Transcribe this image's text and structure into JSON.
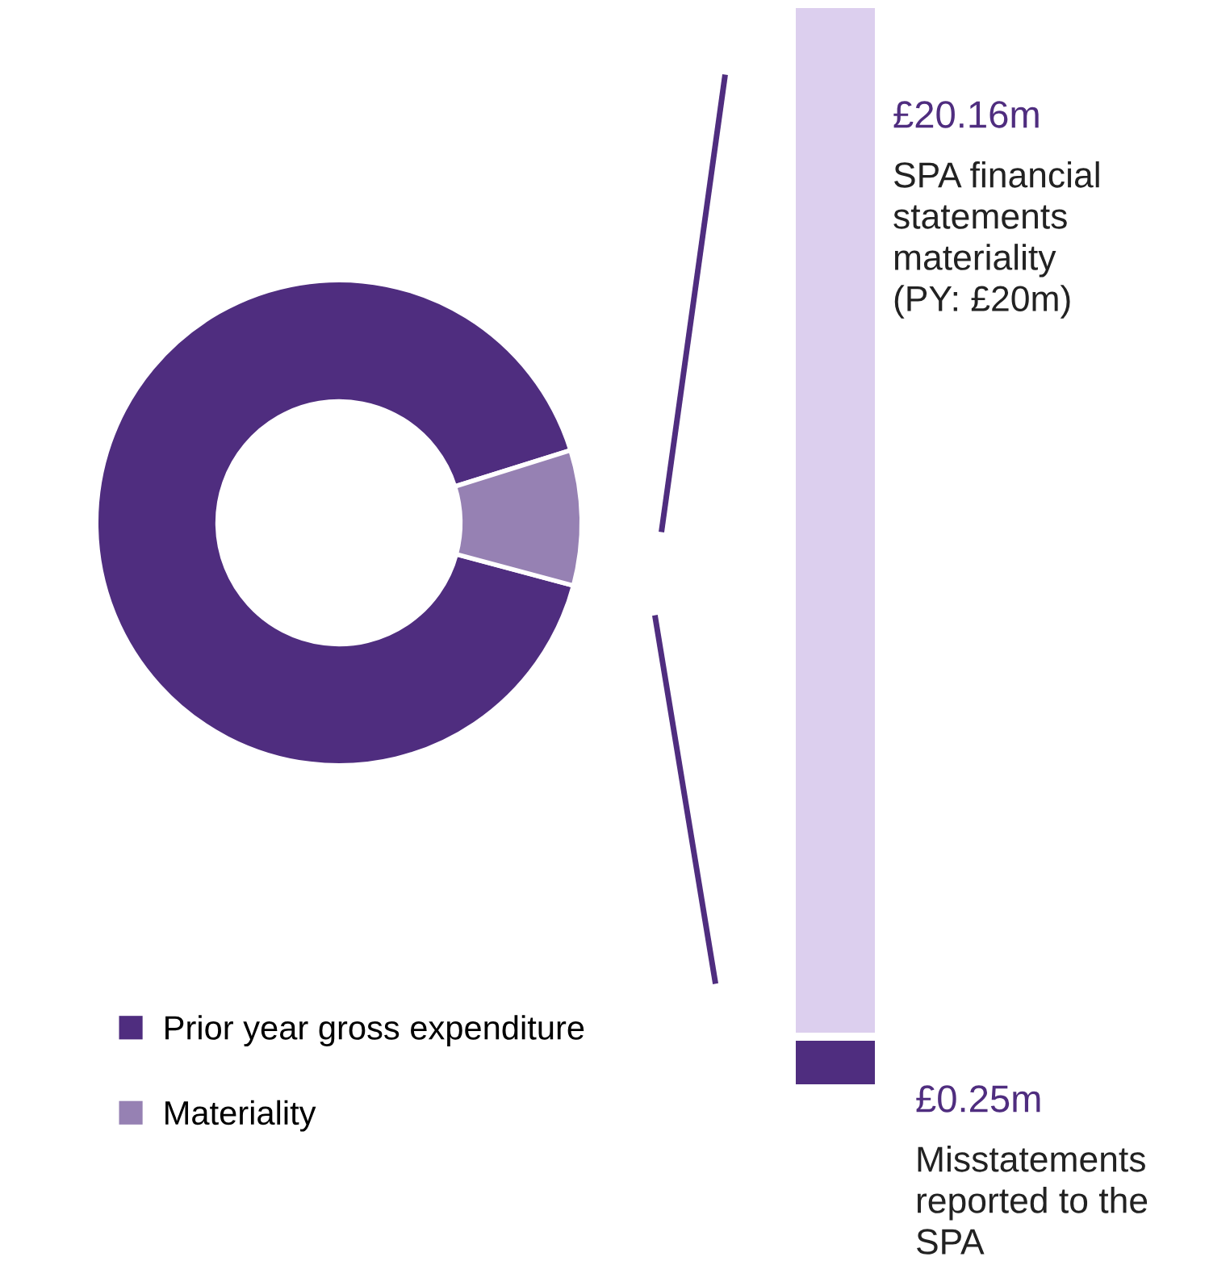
{
  "chart_data": [
    {
      "type": "donut",
      "categories": [
        "Prior year gross expenditure",
        "Materiality"
      ],
      "values": [
        91,
        9
      ],
      "colors": [
        "#4f2d7f",
        "#9681b3"
      ],
      "legend": "bottom left"
    },
    {
      "type": "other",
      "annotations": [
        "£20.16m",
        "SPA financial\nstatements\nmateriality\n(PY: £20m)",
        "£0.25m",
        "Misstatements\nreported to the\nSPA"
      ]
    }
  ]
}
